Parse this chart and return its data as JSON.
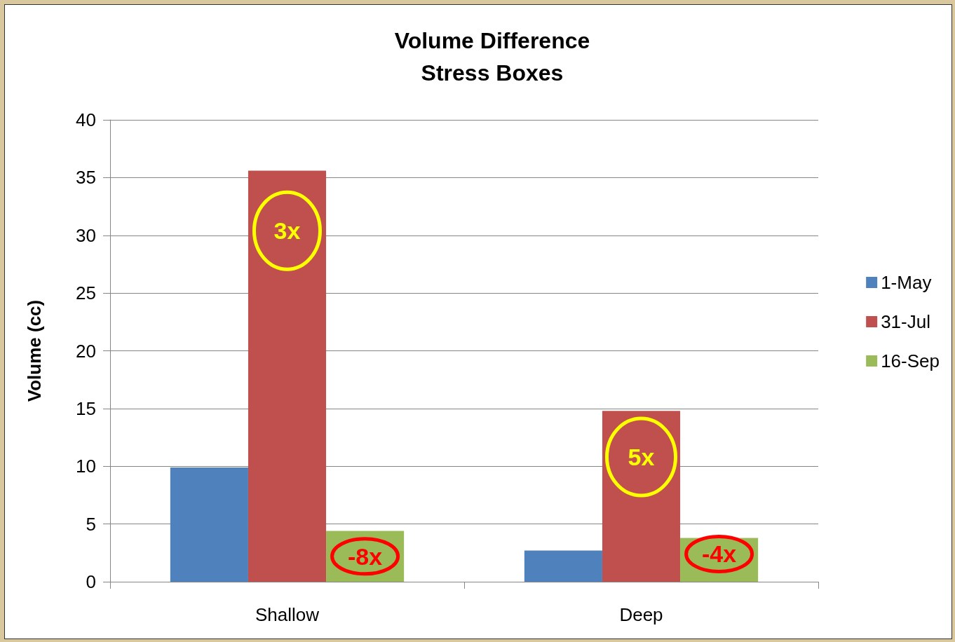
{
  "chart_data": {
    "type": "bar",
    "title": "Volume Difference",
    "subtitle": "Stress Boxes",
    "ylabel": "Volume (cc)",
    "categories": [
      "Shallow",
      "Deep"
    ],
    "series": [
      {
        "name": "1-May",
        "color": "#4f81bd",
        "values": [
          9.9,
          2.7
        ]
      },
      {
        "name": "31-Jul",
        "color": "#c0504d",
        "values": [
          35.6,
          14.8
        ]
      },
      {
        "name": "16-Sep",
        "color": "#9bbb59",
        "values": [
          4.4,
          3.8
        ]
      }
    ],
    "ylim": [
      0,
      40
    ],
    "yticks": [
      0,
      5,
      10,
      15,
      20,
      25,
      30,
      35,
      40
    ],
    "grid": "y",
    "legend": "right",
    "annotations": [
      "3x",
      "-8x",
      "5x",
      "-4x"
    ]
  }
}
